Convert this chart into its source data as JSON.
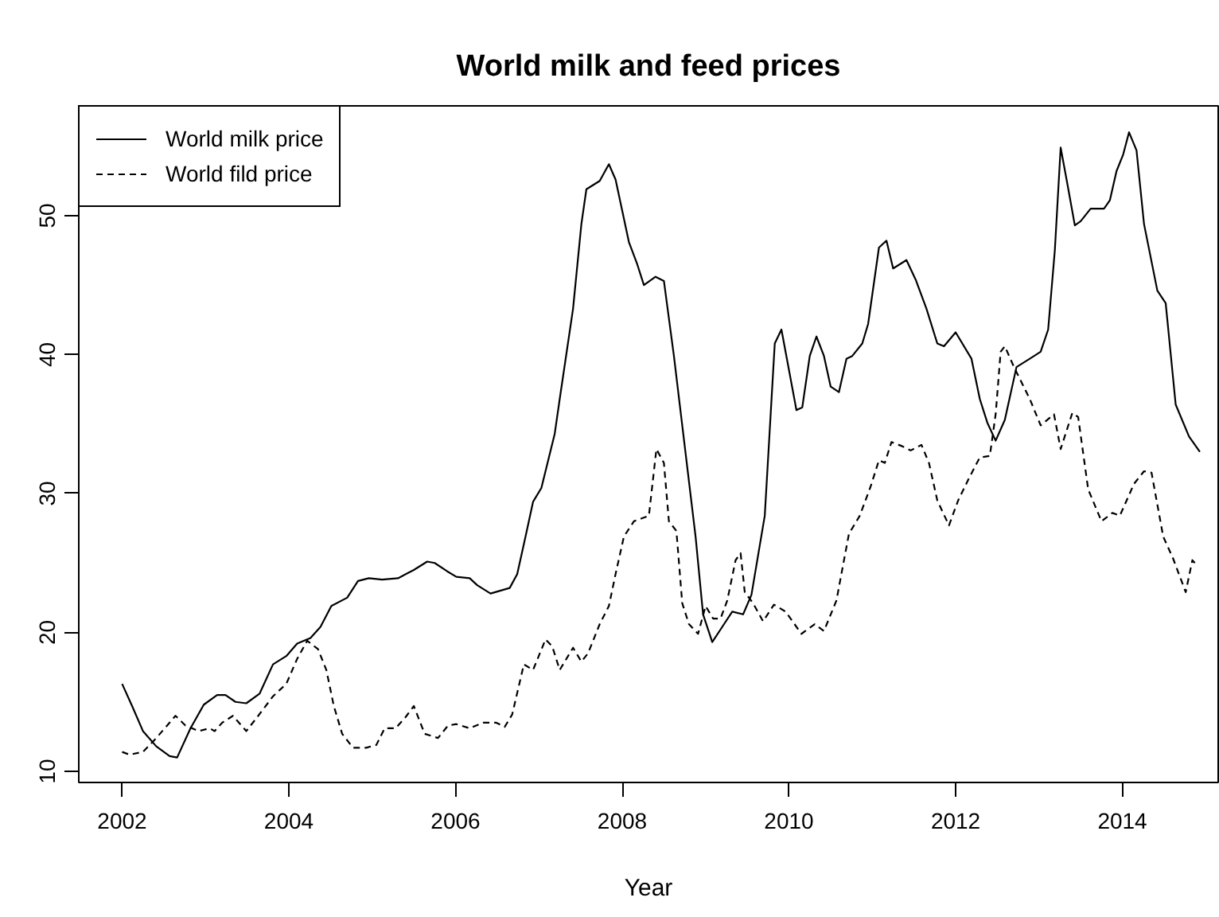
{
  "chart_data": {
    "type": "line",
    "title": "World milk and feed prices",
    "xlabel": "Year",
    "xlim": [
      2001.48,
      2015.15
    ],
    "ylim": [
      9.2,
      57.9
    ],
    "xticks": [
      2002,
      2004,
      2006,
      2008,
      2010,
      2012,
      2014
    ],
    "yticks": [
      10,
      20,
      30,
      40,
      50
    ],
    "legend": "top left",
    "series": [
      {
        "name": "World milk price",
        "color": "#000000",
        "line_style": "solid",
        "x": [
          2002.0,
          2002.12,
          2002.25,
          2002.41,
          2002.57,
          2002.66,
          2002.82,
          2002.98,
          2003.14,
          2003.24,
          2003.36,
          2003.49,
          2003.65,
          2003.81,
          2003.97,
          2004.1,
          2004.26,
          2004.38,
          2004.51,
          2004.7,
          2004.83,
          2004.96,
          2005.12,
          2005.31,
          2005.5,
          2005.66,
          2005.75,
          2005.9,
          2006.01,
          2006.17,
          2006.26,
          2006.42,
          2006.65,
          2006.74,
          2006.84,
          2006.93,
          2007.03,
          2007.19,
          2007.25,
          2007.41,
          2007.51,
          2007.57,
          2007.73,
          2007.84,
          2007.92,
          2008.08,
          2008.18,
          2008.26,
          2008.4,
          2008.5,
          2008.62,
          2008.75,
          2008.88,
          2008.97,
          2009.08,
          2009.2,
          2009.32,
          2009.45,
          2009.55,
          2009.71,
          2009.83,
          2009.91,
          2010.09,
          2010.16,
          2010.25,
          2010.33,
          2010.42,
          2010.5,
          2010.6,
          2010.69,
          2010.76,
          2010.88,
          2010.95,
          2011.08,
          2011.17,
          2011.25,
          2011.41,
          2011.52,
          2011.65,
          2011.78,
          2011.86,
          2012.0,
          2012.19,
          2012.29,
          2012.38,
          2012.48,
          2012.59,
          2012.73,
          2012.89,
          2013.02,
          2013.11,
          2013.19,
          2013.26,
          2013.34,
          2013.43,
          2013.5,
          2013.62,
          2013.78,
          2013.85,
          2013.93,
          2014.01,
          2014.08,
          2014.17,
          2014.26,
          2014.42,
          2014.52,
          2014.64,
          2014.8,
          2014.93
        ],
        "values": [
          16.3,
          14.7,
          12.9,
          11.8,
          11.1,
          11.0,
          13.1,
          14.8,
          15.5,
          15.5,
          15.0,
          14.9,
          15.6,
          17.7,
          18.3,
          19.2,
          19.6,
          20.4,
          21.9,
          22.5,
          23.7,
          23.9,
          23.8,
          23.9,
          24.5,
          25.1,
          25.0,
          24.4,
          24.0,
          23.9,
          23.4,
          22.8,
          23.2,
          24.2,
          26.9,
          29.4,
          30.4,
          34.3,
          36.8,
          43.3,
          49.4,
          51.9,
          52.5,
          53.7,
          52.6,
          48.1,
          46.5,
          45.0,
          45.6,
          45.3,
          39.9,
          33.4,
          26.9,
          21.3,
          19.3,
          20.4,
          21.5,
          21.3,
          22.7,
          28.4,
          40.8,
          41.8,
          36.0,
          36.2,
          39.9,
          41.3,
          39.9,
          37.7,
          37.3,
          39.7,
          39.9,
          40.8,
          42.2,
          47.7,
          48.2,
          46.2,
          46.8,
          45.4,
          43.3,
          40.8,
          40.6,
          41.6,
          39.7,
          36.8,
          35.1,
          33.8,
          35.3,
          39.1,
          39.7,
          40.2,
          41.8,
          47.5,
          54.9,
          52.3,
          49.3,
          49.6,
          50.5,
          50.5,
          51.1,
          53.2,
          54.4,
          56.0,
          54.7,
          49.4,
          44.6,
          43.7,
          36.4,
          34.1,
          33.0
        ]
      },
      {
        "name": "World fild price",
        "color": "#000000",
        "line_style": "dashed",
        "x": [
          2002.0,
          2002.09,
          2002.25,
          2002.41,
          2002.54,
          2002.64,
          2002.76,
          2002.92,
          2003.05,
          2003.11,
          2003.2,
          2003.33,
          2003.49,
          2003.62,
          2003.81,
          2003.97,
          2004.1,
          2004.22,
          2004.35,
          2004.45,
          2004.54,
          2004.64,
          2004.77,
          2004.93,
          2005.05,
          2005.15,
          2005.28,
          2005.4,
          2005.5,
          2005.63,
          2005.79,
          2005.91,
          2006.01,
          2006.17,
          2006.33,
          2006.49,
          2006.59,
          2006.68,
          2006.82,
          2006.93,
          2007.08,
          2007.16,
          2007.25,
          2007.41,
          2007.51,
          2007.59,
          2007.73,
          2007.84,
          2007.92,
          2008.02,
          2008.14,
          2008.32,
          2008.41,
          2008.5,
          2008.56,
          2008.65,
          2008.72,
          2008.8,
          2008.91,
          2009.0,
          2009.09,
          2009.18,
          2009.26,
          2009.36,
          2009.42,
          2009.47,
          2009.57,
          2009.69,
          2009.82,
          2009.96,
          2010.15,
          2010.31,
          2010.42,
          2010.57,
          2010.72,
          2010.85,
          2010.98,
          2011.08,
          2011.15,
          2011.23,
          2011.36,
          2011.46,
          2011.59,
          2011.68,
          2011.78,
          2011.92,
          2012.03,
          2012.16,
          2012.29,
          2012.41,
          2012.48,
          2012.54,
          2012.59,
          2012.7,
          2012.89,
          2013.02,
          2013.18,
          2013.26,
          2013.4,
          2013.47,
          2013.59,
          2013.75,
          2013.88,
          2013.97,
          2014.14,
          2014.26,
          2014.35,
          2014.49,
          2014.61,
          2014.76,
          2014.84,
          2014.87
        ],
        "values": [
          11.4,
          11.2,
          11.4,
          12.4,
          13.3,
          14.0,
          13.3,
          12.9,
          13.1,
          12.9,
          13.5,
          14.0,
          12.9,
          13.9,
          15.4,
          16.3,
          18.1,
          19.4,
          18.8,
          17.3,
          14.7,
          12.7,
          11.7,
          11.7,
          11.9,
          13.1,
          13.1,
          13.9,
          14.7,
          12.7,
          12.4,
          13.3,
          13.4,
          13.1,
          13.5,
          13.5,
          13.2,
          14.1,
          17.7,
          17.3,
          19.5,
          19.0,
          17.3,
          18.9,
          17.9,
          18.5,
          20.6,
          21.9,
          24.2,
          26.9,
          28.0,
          28.4,
          33.2,
          32.2,
          28.0,
          27.3,
          22.1,
          20.6,
          19.9,
          21.9,
          21.0,
          21.0,
          22.3,
          25.2,
          25.7,
          22.9,
          22.1,
          20.8,
          22.0,
          21.5,
          19.9,
          20.6,
          20.1,
          22.3,
          27.1,
          28.4,
          30.5,
          32.4,
          32.2,
          33.7,
          33.4,
          33.1,
          33.5,
          32.2,
          29.5,
          27.7,
          29.5,
          31.1,
          32.6,
          32.7,
          35.7,
          40.2,
          40.6,
          39.1,
          36.8,
          34.9,
          35.7,
          33.2,
          35.8,
          35.5,
          30.3,
          28.0,
          28.6,
          28.4,
          30.7,
          31.6,
          31.5,
          26.9,
          25.3,
          22.9,
          25.2,
          25.0
        ]
      }
    ]
  }
}
